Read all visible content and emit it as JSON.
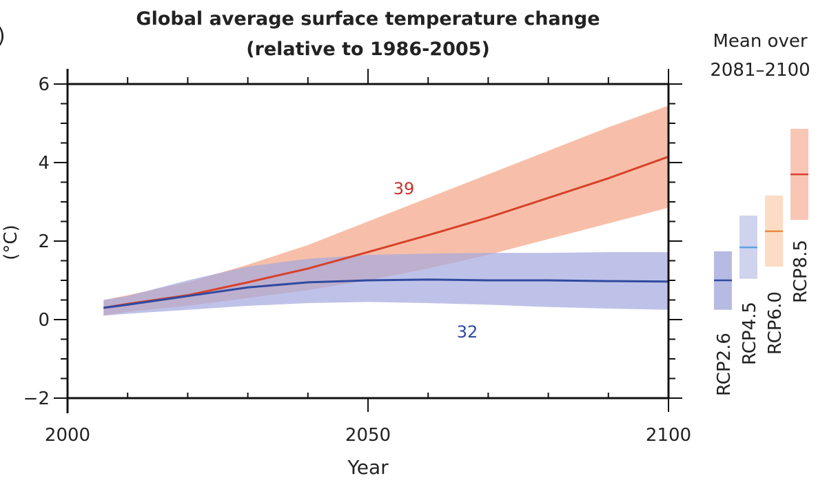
{
  "panel_label": ")",
  "chart_data": {
    "type": "line",
    "title": "Global average surface temperature change",
    "subtitle": "(relative to 1986-2005)",
    "xlabel": "Year",
    "ylabel": "(°C)",
    "xlim": [
      2000,
      2100
    ],
    "ylim": [
      -2,
      6
    ],
    "x_ticks": [
      "2000",
      "2050",
      "2100"
    ],
    "y_ticks": [
      "6",
      "4",
      "2",
      "0",
      "−2"
    ],
    "grid": false,
    "x": [
      2006,
      2010,
      2020,
      2030,
      2040,
      2050,
      2060,
      2070,
      2080,
      2090,
      2100
    ],
    "series": [
      {
        "name": "RCP8.5",
        "color": "#d8412a",
        "band_color": "#f6b49a",
        "model_count": "39",
        "mean": [
          0.3,
          0.4,
          0.62,
          0.95,
          1.3,
          1.72,
          2.15,
          2.6,
          3.1,
          3.6,
          4.15
        ],
        "upper": [
          0.5,
          0.62,
          0.95,
          1.4,
          1.9,
          2.5,
          3.1,
          3.7,
          4.3,
          4.9,
          5.45
        ],
        "lower": [
          0.1,
          0.2,
          0.35,
          0.55,
          0.75,
          1.0,
          1.3,
          1.65,
          2.05,
          2.45,
          2.85
        ]
      },
      {
        "name": "RCP2.6",
        "color": "#2f4aa0",
        "band_color": "#a4a8de",
        "model_count": "32",
        "mean": [
          0.3,
          0.38,
          0.6,
          0.82,
          0.95,
          1.0,
          1.02,
          1.0,
          1.0,
          0.98,
          0.97
        ],
        "upper": [
          0.5,
          0.6,
          1.0,
          1.35,
          1.55,
          1.65,
          1.68,
          1.7,
          1.7,
          1.72,
          1.72
        ],
        "lower": [
          0.1,
          0.15,
          0.25,
          0.35,
          0.42,
          0.45,
          0.42,
          0.38,
          0.32,
          0.28,
          0.25
        ]
      }
    ],
    "side_panel": {
      "title_line1": "Mean over",
      "title_line2": "2081–2100",
      "bars": [
        {
          "name": "RCP2.6",
          "low": 0.25,
          "mean": 1.0,
          "high": 1.74,
          "color": "#2f4aa0",
          "band_color": "#b7bbe3"
        },
        {
          "name": "RCP4.5",
          "low": 1.04,
          "mean": 1.84,
          "high": 2.65,
          "color": "#5ea3dc",
          "band_color": "#cfd3ee"
        },
        {
          "name": "RCP6.0",
          "low": 1.35,
          "mean": 2.25,
          "high": 3.16,
          "color": "#ee8a45",
          "band_color": "#fcdcc4"
        },
        {
          "name": "RCP8.5",
          "low": 2.54,
          "mean": 3.7,
          "high": 4.86,
          "color": "#d8412a",
          "band_color": "#f9c6b6"
        }
      ]
    }
  }
}
